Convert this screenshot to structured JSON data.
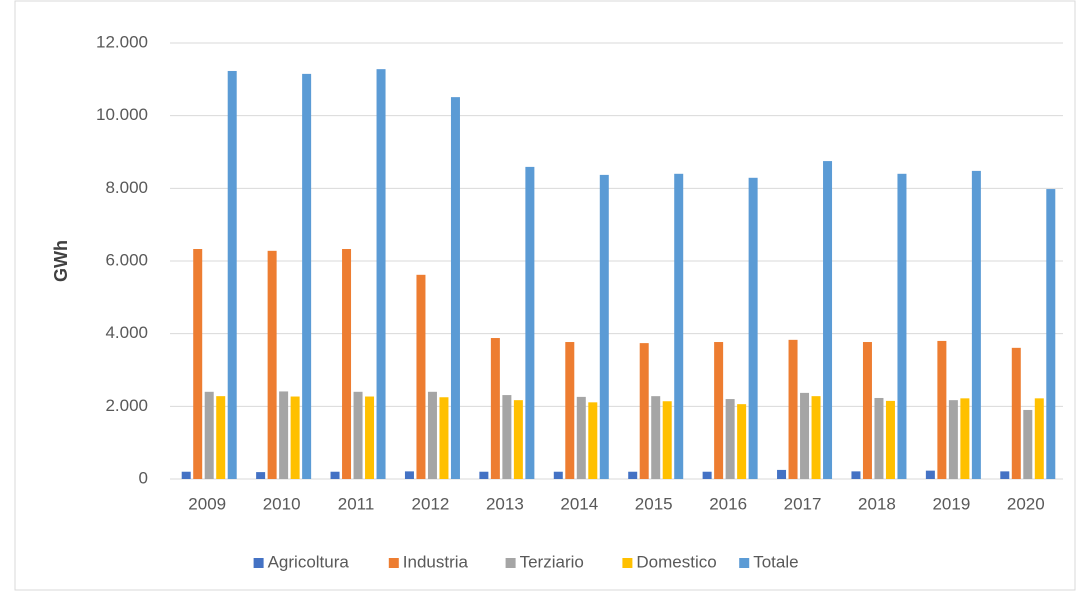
{
  "chart_data": {
    "type": "bar",
    "y_label": "GWh",
    "categories": [
      "2009",
      "2010",
      "2011",
      "2012",
      "2013",
      "2014",
      "2015",
      "2016",
      "2017",
      "2018",
      "2019",
      "2020"
    ],
    "series": [
      {
        "name": "Agricoltura",
        "color": "#4472c4",
        "values": [
          200,
          190,
          200,
          210,
          200,
          200,
          200,
          200,
          250,
          210,
          230,
          210
        ]
      },
      {
        "name": "Industria",
        "color": "#ed7d31",
        "values": [
          6330,
          6280,
          6330,
          5620,
          3880,
          3770,
          3740,
          3770,
          3830,
          3770,
          3800,
          3610
        ]
      },
      {
        "name": "Terziario",
        "color": "#a5a5a5",
        "values": [
          2400,
          2410,
          2400,
          2400,
          2310,
          2260,
          2280,
          2200,
          2370,
          2230,
          2170,
          1900
        ]
      },
      {
        "name": "Domestico",
        "color": "#ffc000",
        "values": [
          2280,
          2270,
          2270,
          2250,
          2170,
          2110,
          2140,
          2060,
          2280,
          2150,
          2220,
          2220
        ]
      },
      {
        "name": "Totale",
        "color": "#5b9bd5",
        "values": [
          11230,
          11150,
          11280,
          10510,
          8590,
          8370,
          8400,
          8290,
          8750,
          8400,
          8480,
          7980
        ]
      }
    ],
    "ylim": [
      0,
      12000
    ],
    "yticks": [
      0,
      {
        "value": 2000,
        "label": "2.000"
      },
      {
        "value": 4000,
        "label": "4.000"
      },
      {
        "value": 6000,
        "label": "6.000"
      },
      {
        "value": 8000,
        "label": "8.000"
      },
      {
        "value": 10000,
        "label": "10.000"
      },
      {
        "value": 12000,
        "label": "12.000"
      }
    ],
    "grid": true,
    "legend": "bottom"
  }
}
